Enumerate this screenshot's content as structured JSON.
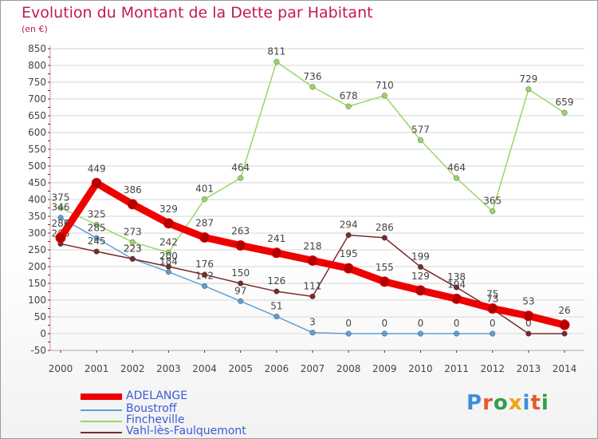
{
  "header": {
    "title": "Evolution du Montant de la Dette par Habitant",
    "unit": "(en €)"
  },
  "colors": {
    "text": "#444444",
    "title": "#c2185b",
    "grid": "#d6d6d6",
    "axis_dashes": "#cc0000"
  },
  "legend": [
    {
      "label": "ADELANGE",
      "color": "#ee0000"
    },
    {
      "label": "Boustroff",
      "color": "#5e9fd6"
    },
    {
      "label": "Fincheville",
      "color": "#98d765"
    },
    {
      "label": "Vahl-lès-Faulquemont",
      "color": "#7a2a2a"
    }
  ],
  "logo": {
    "text": "Proxiti"
  },
  "chart_data": {
    "type": "line",
    "title": "Evolution du Montant de la Dette par Habitant",
    "ylabel": "(en €)",
    "xlabel": "",
    "x": [
      2000,
      2001,
      2002,
      2003,
      2004,
      2005,
      2006,
      2007,
      2008,
      2009,
      2010,
      2011,
      2012,
      2013,
      2014
    ],
    "ylim": [
      -50,
      850
    ],
    "ystep": 50,
    "grid": true,
    "legend_position": "bottom-left",
    "series": [
      {
        "name": "ADELANGE",
        "color": "#ee0000",
        "values": [
          286,
          449,
          386,
          329,
          287,
          263,
          241,
          218,
          195,
          155,
          129,
          104,
          75,
          53,
          26
        ]
      },
      {
        "name": "Boustroff",
        "color": "#5e9fd6",
        "values": [
          346,
          285,
          223,
          184,
          142,
          97,
          51,
          3,
          0,
          0,
          0,
          0,
          0,
          null,
          null
        ]
      },
      {
        "name": "Fincheville",
        "color": "#98d765",
        "values": [
          375,
          325,
          273,
          242,
          401,
          464,
          811,
          736,
          678,
          710,
          577,
          464,
          365,
          729,
          659
        ]
      },
      {
        "name": "Vahl-lès-Faulquemont",
        "color": "#7a2a2a",
        "values": [
          268,
          245,
          223,
          200,
          176,
          150,
          126,
          111,
          294,
          286,
          199,
          138,
          73,
          0,
          0
        ]
      }
    ]
  }
}
